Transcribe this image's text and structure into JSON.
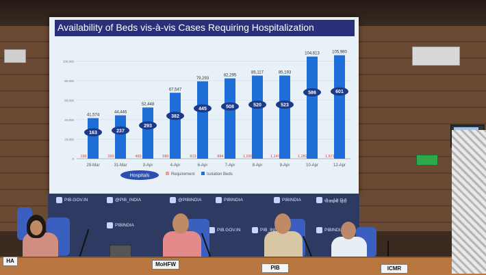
{
  "slide": {
    "title": "Availability of Beds vis-à-vis Cases Requiring Hospitalization",
    "hospitals_label": "Hospitals"
  },
  "chart_data": {
    "type": "bar",
    "title": "Availability of Beds vis-à-vis Cases Requiring Hospitalization",
    "categories": [
      "29-Mar",
      "31-Mar",
      "3-Apr",
      "4-Apr",
      "6-Apr",
      "7-Apr",
      "8-Apr",
      "9-Apr",
      "10-Apr",
      "12-Apr"
    ],
    "series": [
      {
        "name": "Requirement",
        "values": [
          196,
          250,
          460,
          580,
          813,
          884,
          1039,
          1147,
          1282,
          1671
        ],
        "labels": [
          "196",
          "250",
          "460",
          "580",
          "813",
          "884",
          "1,039",
          "1,147",
          "1,282",
          "1,671"
        ]
      },
      {
        "name": "Isolation Beds",
        "values": [
          41574,
          44446,
          52448,
          67547,
          79293,
          82295,
          85117,
          85193,
          104613,
          105980
        ],
        "labels": [
          "41,574",
          "44,446",
          "52,448",
          "67,547",
          "79,293",
          "82,295",
          "85,117",
          "85,193",
          "104,613",
          "105,980"
        ]
      }
    ],
    "hospitals": [
      163,
      237,
      293,
      382,
      445,
      508,
      520,
      523,
      586,
      601
    ],
    "y_ticks": [
      "0",
      "20,000",
      "40,000",
      "60,000",
      "80,000",
      "100,000"
    ],
    "ylim": [
      0,
      110000
    ],
    "legend_position": "bottom",
    "colors": {
      "isolation_beds": "#1f6fd8",
      "hospital_badge": "#1b3a8a",
      "requirement_text": "#e0402a"
    }
  },
  "backdrop": {
    "items": [
      "PIB.GOV.IN",
      "@PIB_INDIA",
      "@PIBINDIA",
      "PIBINDIA",
      "PIBINDIA",
      "पीआईबी हिंदी",
      "PIBINDIA",
      "PIB.GOV.IN",
      "PIB_INDIA",
      "PIBINDIA"
    ]
  },
  "nameplates": [
    "HA",
    "MoHFW",
    "PIB",
    "ICMR"
  ]
}
